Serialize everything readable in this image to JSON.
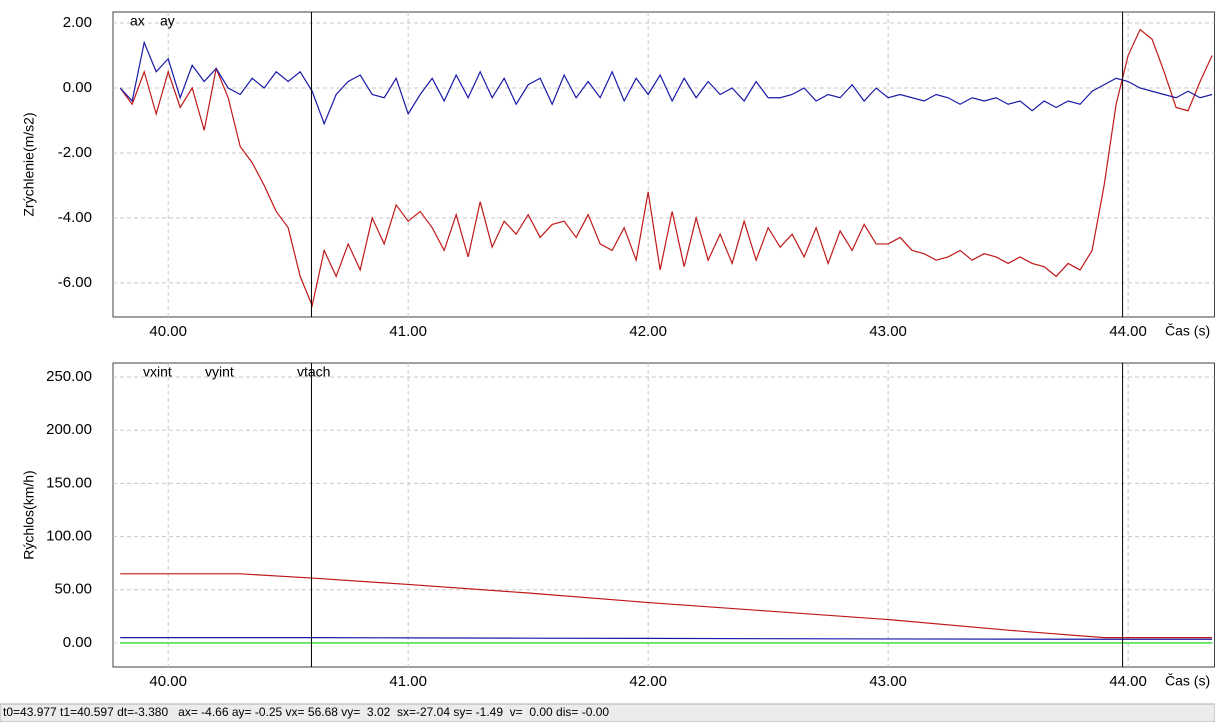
{
  "chart_data": [
    {
      "type": "line",
      "ylabel": "Zrýchlenie(m/s2)",
      "xlabel": "Čas (s)",
      "grid": true,
      "xlim": [
        39.77,
        44.36
      ],
      "ylim": [
        -7.05,
        2.34
      ],
      "xticks": [
        {
          "value": 40,
          "label": "40.00"
        },
        {
          "value": 41,
          "label": "41.00"
        },
        {
          "value": 42,
          "label": "42.00"
        },
        {
          "value": 43,
          "label": "43.00"
        },
        {
          "value": 44,
          "label": "44.00"
        }
      ],
      "yticks": [
        {
          "value": 2,
          "label": "2.00"
        },
        {
          "value": 0,
          "label": "0.00"
        },
        {
          "value": -2,
          "label": "-2.00"
        },
        {
          "value": -4,
          "label": "-4.00"
        },
        {
          "value": -6,
          "label": "-6.00"
        }
      ],
      "cursors": [
        40.597,
        43.977
      ],
      "x": [
        39.8,
        39.85,
        39.9,
        39.95,
        40.0,
        40.05,
        40.1,
        40.15,
        40.2,
        40.25,
        40.3,
        40.35,
        40.4,
        40.45,
        40.5,
        40.55,
        40.6,
        40.65,
        40.7,
        40.75,
        40.8,
        40.85,
        40.9,
        40.95,
        41.0,
        41.05,
        41.1,
        41.15,
        41.2,
        41.25,
        41.3,
        41.35,
        41.4,
        41.45,
        41.5,
        41.55,
        41.6,
        41.65,
        41.7,
        41.75,
        41.8,
        41.85,
        41.9,
        41.95,
        42.0,
        42.05,
        42.1,
        42.15,
        42.2,
        42.25,
        42.3,
        42.35,
        42.4,
        42.45,
        42.5,
        42.55,
        42.6,
        42.65,
        42.7,
        42.75,
        42.8,
        42.85,
        42.9,
        42.95,
        43.0,
        43.05,
        43.1,
        43.15,
        43.2,
        43.25,
        43.3,
        43.35,
        43.4,
        43.45,
        43.5,
        43.55,
        43.6,
        43.65,
        43.7,
        43.75,
        43.8,
        43.85,
        43.9,
        43.95,
        44.0,
        44.05,
        44.1,
        44.15,
        44.2,
        44.25,
        44.3,
        44.35
      ],
      "series": [
        {
          "name": "ax",
          "color": "#c01818",
          "values": [
            0.0,
            -0.5,
            0.5,
            -0.8,
            0.5,
            -0.6,
            0.0,
            -1.3,
            0.6,
            -0.3,
            -1.8,
            -2.3,
            -3.0,
            -3.8,
            -4.3,
            -5.8,
            -6.7,
            -5.0,
            -5.8,
            -4.8,
            -5.6,
            -4.0,
            -4.8,
            -3.6,
            -4.1,
            -3.8,
            -4.3,
            -5.0,
            -3.9,
            -5.2,
            -3.5,
            -4.9,
            -4.1,
            -4.5,
            -3.9,
            -4.6,
            -4.2,
            -4.1,
            -4.6,
            -3.9,
            -4.8,
            -5.0,
            -4.3,
            -5.3,
            -3.2,
            -5.6,
            -3.8,
            -5.5,
            -4.0,
            -5.3,
            -4.5,
            -5.4,
            -4.1,
            -5.3,
            -4.3,
            -4.9,
            -4.5,
            -5.2,
            -4.3,
            -5.4,
            -4.4,
            -5.0,
            -4.2,
            -4.8,
            -4.8,
            -4.6,
            -5.0,
            -5.1,
            -5.3,
            -5.2,
            -5.0,
            -5.3,
            -5.1,
            -5.2,
            -5.4,
            -5.2,
            -5.4,
            -5.5,
            -5.8,
            -5.4,
            -5.6,
            -5.0,
            -3.0,
            -0.5,
            1.0,
            1.8,
            1.5,
            0.5,
            -0.6,
            -0.7,
            0.2,
            1.0
          ]
        },
        {
          "name": "ay",
          "color": "#1a1aa8",
          "values": [
            0.0,
            -0.4,
            1.4,
            0.5,
            0.9,
            -0.3,
            0.7,
            0.2,
            0.6,
            0.0,
            -0.2,
            0.3,
            0.0,
            0.5,
            0.2,
            0.5,
            -0.1,
            -1.1,
            -0.2,
            0.2,
            0.4,
            -0.2,
            -0.3,
            0.3,
            -0.8,
            -0.2,
            0.3,
            -0.4,
            0.4,
            -0.3,
            0.5,
            -0.3,
            0.3,
            -0.5,
            0.1,
            0.3,
            -0.5,
            0.4,
            -0.3,
            0.2,
            -0.3,
            0.5,
            -0.4,
            0.3,
            -0.2,
            0.4,
            -0.4,
            0.3,
            -0.3,
            0.2,
            -0.2,
            0.0,
            -0.4,
            0.2,
            -0.3,
            -0.3,
            -0.2,
            0.0,
            -0.4,
            -0.2,
            -0.3,
            0.1,
            -0.4,
            0.0,
            -0.3,
            -0.2,
            -0.3,
            -0.4,
            -0.2,
            -0.3,
            -0.5,
            -0.3,
            -0.4,
            -0.3,
            -0.5,
            -0.4,
            -0.7,
            -0.4,
            -0.6,
            -0.4,
            -0.5,
            -0.1,
            0.1,
            0.3,
            0.2,
            0.0,
            -0.1,
            -0.2,
            -0.3,
            -0.1,
            -0.3,
            -0.2
          ]
        }
      ]
    },
    {
      "type": "line",
      "ylabel": "Rýchlos(km/h)",
      "xlabel": "Čas (s)",
      "grid": true,
      "xlim": [
        39.77,
        44.36
      ],
      "ylim": [
        -22.6,
        263.2
      ],
      "xticks": [
        {
          "value": 40,
          "label": "40.00"
        },
        {
          "value": 41,
          "label": "41.00"
        },
        {
          "value": 42,
          "label": "42.00"
        },
        {
          "value": 43,
          "label": "43.00"
        },
        {
          "value": 44,
          "label": "44.00"
        }
      ],
      "yticks": [
        {
          "value": 250,
          "label": "250.00"
        },
        {
          "value": 200,
          "label": "200.00"
        },
        {
          "value": 150,
          "label": "150.00"
        },
        {
          "value": 100,
          "label": "100.00"
        },
        {
          "value": 50,
          "label": "50.00"
        },
        {
          "value": 0,
          "label": "0.00"
        }
      ],
      "cursors": [
        40.597,
        43.977
      ],
      "x": [
        39.8,
        40.0,
        40.3,
        40.6,
        41.0,
        41.5,
        42.0,
        42.5,
        43.0,
        43.5,
        43.9,
        44.0,
        44.35
      ],
      "series": [
        {
          "name": "vxint",
          "color": "#c01818",
          "values": [
            65,
            65,
            65,
            61,
            55,
            47,
            38,
            30,
            22,
            12,
            5,
            5,
            5
          ]
        },
        {
          "name": "vyint",
          "color": "#1a1aa8",
          "values": [
            5,
            5,
            5,
            5,
            4.8,
            4.5,
            4.3,
            4,
            3.8,
            3.6,
            3.5,
            3.5,
            3.5
          ]
        },
        {
          "name": "vtach",
          "color": "#00d000",
          "values": [
            0,
            0,
            0,
            0,
            0,
            0,
            0,
            0,
            0,
            0,
            0,
            0,
            0
          ]
        }
      ]
    }
  ],
  "status_bar": "t0=43.977 t1=40.597 dt=-3.380   ax= -4.66 ay= -0.25 vx= 56.68 vy=  3.02  sx=-27.04 sy= -1.49  v=  0.00 dis= -0.00"
}
